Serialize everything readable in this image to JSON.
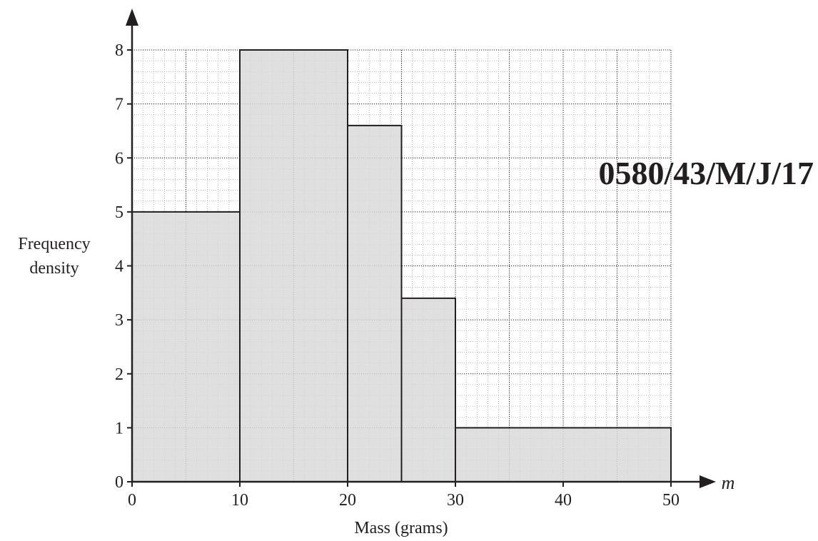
{
  "chart_data": {
    "type": "bar",
    "subtype": "histogram",
    "xlabel": "Mass (grams)",
    "x_variable": "m",
    "ylabel_lines": [
      "Frequency",
      "density"
    ],
    "xlim": [
      0,
      50
    ],
    "ylim": [
      0,
      8
    ],
    "x_ticks": [
      0,
      10,
      20,
      30,
      40,
      50
    ],
    "y_ticks": [
      0,
      1,
      2,
      3,
      4,
      5,
      6,
      7,
      8
    ],
    "grid": true,
    "bins": [
      {
        "from": 0,
        "to": 10,
        "value": 5
      },
      {
        "from": 10,
        "to": 20,
        "value": 8
      },
      {
        "from": 20,
        "to": 25,
        "value": 6.6
      },
      {
        "from": 25,
        "to": 30,
        "value": 3.4
      },
      {
        "from": 30,
        "to": 50,
        "value": 1
      }
    ]
  },
  "annotation": "0580/43/M/J/17",
  "colors": {
    "bar_fill": "#d9d9d9",
    "ink": "#231f20",
    "grid_major": "#231f20",
    "grid_minor": "#8a8a8a"
  }
}
